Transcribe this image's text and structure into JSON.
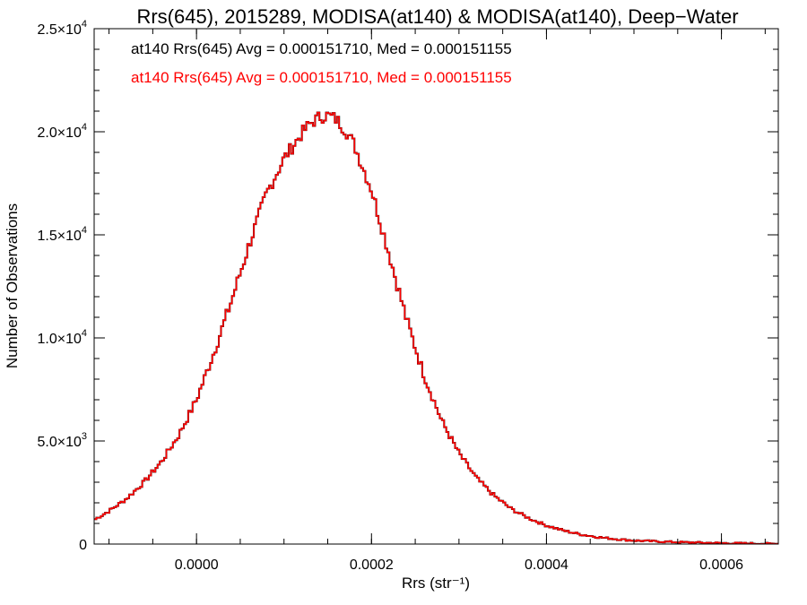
{
  "chart_data": {
    "type": "line",
    "title": "Rrs(645), 2015289, MODISA(at140) & MODISA(at140), Deep−Water",
    "xlabel": "Rrs (str⁻¹)",
    "ylabel": "Number of Observations",
    "xlim": [
      -0.000117,
      0.000665
    ],
    "ylim": [
      0,
      25000
    ],
    "x_ticks": [
      {
        "value": 0.0,
        "label": "0.0000"
      },
      {
        "value": 0.0002,
        "label": "0.0002"
      },
      {
        "value": 0.0004,
        "label": "0.0004"
      },
      {
        "value": 0.0006,
        "label": "0.0006"
      }
    ],
    "y_ticks": [
      {
        "value": 0,
        "label": "0"
      },
      {
        "value": 5000,
        "label": "5.0×10",
        "exp": "3"
      },
      {
        "value": 10000,
        "label": "1.0×10",
        "exp": "4"
      },
      {
        "value": 15000,
        "label": "1.5×10",
        "exp": "4"
      },
      {
        "value": 20000,
        "label": "2.0×10",
        "exp": "4"
      },
      {
        "value": 25000,
        "label": "2.5×10",
        "exp": "4"
      }
    ],
    "x_minor_step": 5e-05,
    "y_minor_step": 1000,
    "legend": [
      {
        "text": "at140 Rrs(645) Avg = 0.000151710, Med = 0.000151155",
        "color": "#000000"
      },
      {
        "text": "at140 Rrs(645) Avg = 0.000151710, Med = 0.000151155",
        "color": "#ff0000"
      }
    ],
    "series": [
      {
        "color": "#000000",
        "x": [
          -0.00012,
          -0.0001,
          -8e-05,
          -6e-05,
          -4e-05,
          -2e-05,
          0.0,
          2e-05,
          4e-05,
          6e-05,
          8e-05,
          0.0001,
          0.00012,
          0.00013,
          0.00014,
          0.00015,
          0.00016,
          0.00017,
          0.00018,
          0.0002,
          0.00022,
          0.00024,
          0.00026,
          0.00028,
          0.0003,
          0.00032,
          0.00034,
          0.00036,
          0.00038,
          0.0004,
          0.00042,
          0.00044,
          0.00046,
          0.00048,
          0.0005,
          0.00055,
          0.0006,
          0.00065,
          0.00067
        ],
        "values": [
          1100,
          1600,
          2200,
          3000,
          4000,
          5300,
          7000,
          9300,
          11800,
          14500,
          17000,
          18700,
          19900,
          20400,
          20700,
          20800,
          20600,
          20100,
          19400,
          17200,
          14100,
          10900,
          8200,
          6000,
          4400,
          3200,
          2350,
          1700,
          1250,
          900,
          650,
          460,
          330,
          240,
          170,
          90,
          45,
          20,
          15
        ]
      },
      {
        "color": "#ff0000",
        "x": [
          -0.00012,
          -0.0001,
          -8e-05,
          -6e-05,
          -4e-05,
          -2e-05,
          0.0,
          2e-05,
          4e-05,
          6e-05,
          8e-05,
          0.0001,
          0.00012,
          0.00013,
          0.00014,
          0.00015,
          0.00016,
          0.00017,
          0.00018,
          0.0002,
          0.00022,
          0.00024,
          0.00026,
          0.00028,
          0.0003,
          0.00032,
          0.00034,
          0.00036,
          0.00038,
          0.0004,
          0.00042,
          0.00044,
          0.00046,
          0.00048,
          0.0005,
          0.00055,
          0.0006,
          0.00065,
          0.00067
        ],
        "values": [
          1100,
          1600,
          2200,
          3000,
          4000,
          5300,
          7000,
          9300,
          11800,
          14500,
          17000,
          18700,
          19900,
          20400,
          20700,
          20800,
          20600,
          20100,
          19400,
          17200,
          14100,
          10900,
          8200,
          6000,
          4400,
          3200,
          2350,
          1700,
          1250,
          900,
          650,
          460,
          330,
          240,
          170,
          90,
          45,
          20,
          15
        ]
      }
    ]
  }
}
